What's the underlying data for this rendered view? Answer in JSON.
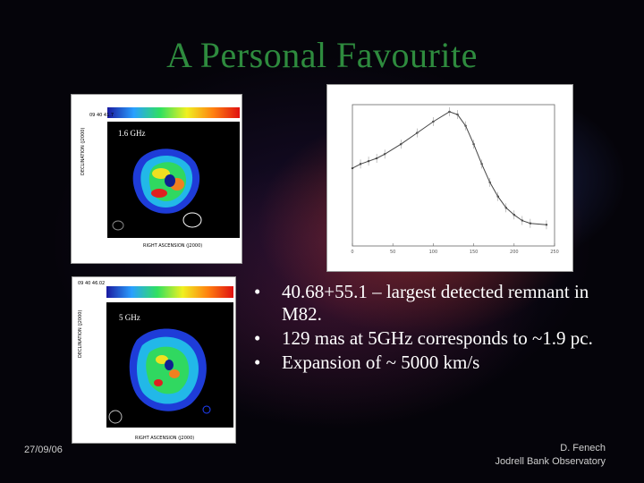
{
  "slide": {
    "title": "A Personal Favourite",
    "bullets": [
      "40.68+55.1 – largest detected remnant in M82.",
      "129 mas at 5GHz corresponds to ~1.9 pc.",
      "Expansion of ~ 5000 km/s"
    ],
    "bullet_symbol": "•",
    "date": "27/09/06",
    "author": "D. Fenech",
    "institution": "Jodrell Bank Observatory"
  },
  "images": {
    "map_1_6ghz": {
      "frequency_label": "1.6 GHz"
    },
    "map_5ghz": {
      "frequency_label": "5 GHz"
    }
  },
  "chart_data": {
    "type": "line",
    "series": [
      {
        "x": [
          0,
          10,
          20,
          30,
          40,
          60,
          80,
          100,
          120,
          130,
          140,
          150,
          160,
          170,
          180,
          190,
          200,
          210,
          220,
          240
        ],
        "y": [
          0.55,
          0.58,
          0.6,
          0.62,
          0.65,
          0.72,
          0.8,
          0.88,
          0.95,
          0.93,
          0.85,
          0.72,
          0.58,
          0.45,
          0.35,
          0.27,
          0.22,
          0.18,
          0.16,
          0.15
        ]
      }
    ],
    "xlim": [
      0,
      250
    ],
    "ylim": [
      0,
      1
    ],
    "x_ticks": [
      0,
      50,
      100,
      150,
      200,
      250
    ],
    "grid": false
  },
  "colors": {
    "title": "#2e8b3e",
    "text": "#ffffff",
    "footer": "#cfcfcf"
  }
}
